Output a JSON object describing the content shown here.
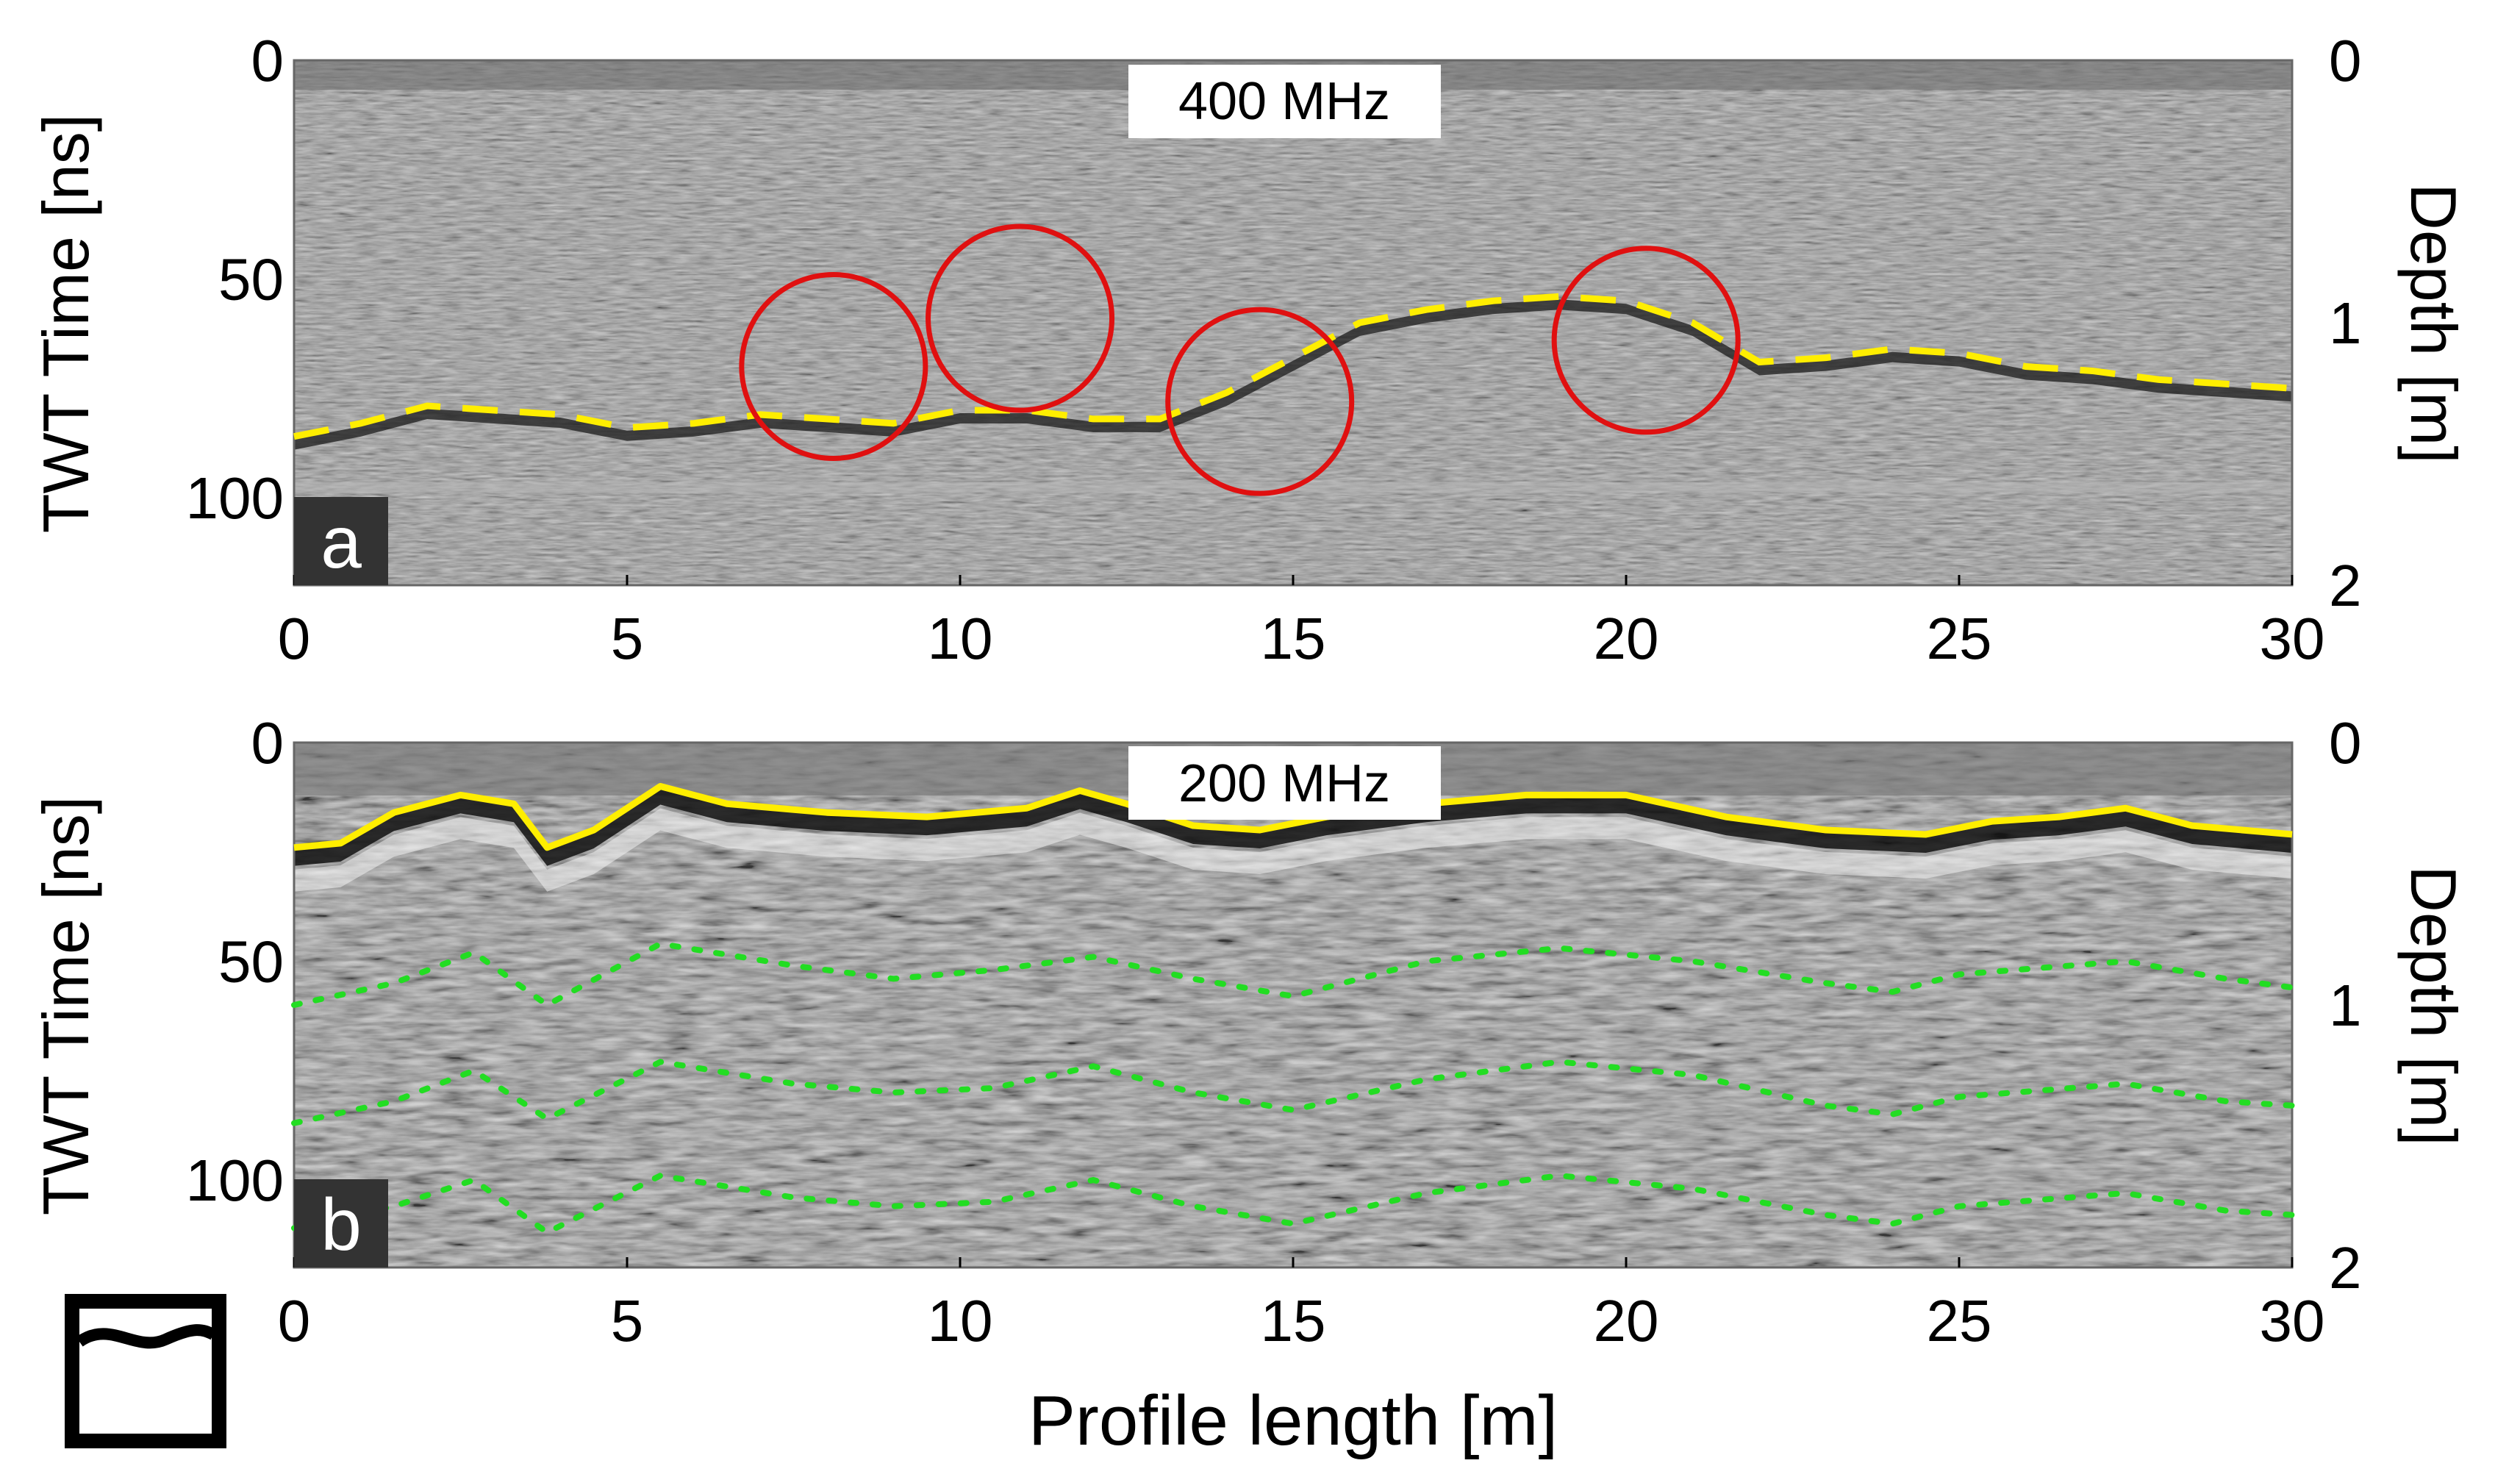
{
  "figure": {
    "xlabel": "Profile length [m]",
    "ylabel_left": "TWT Time [ns]",
    "ylabel_right": "Depth [m]",
    "colors": {
      "interface": "#ffee00",
      "reflector": "#22dd22",
      "hyperbola_marker": "#e01010",
      "radargram_bg": "#888888"
    },
    "icon": "surface-profile-icon"
  },
  "chart_data": [
    {
      "type": "radargram",
      "panel_label": "a",
      "frequency_label": "400 MHz",
      "xlim": [
        0,
        30
      ],
      "ylim_time_ns": [
        0,
        120
      ],
      "ylim_depth_m": [
        0,
        2
      ],
      "x_ticks": [
        0,
        5,
        10,
        15,
        20,
        25,
        30
      ],
      "y_ticks_time": [
        0,
        50,
        100
      ],
      "y_ticks_depth": [
        0,
        1,
        2
      ],
      "interface_line": {
        "style": "dashed",
        "x": [
          0,
          1,
          2,
          3,
          4,
          5,
          6,
          7,
          8,
          9,
          10,
          11,
          12,
          13,
          14,
          15,
          16,
          17,
          18,
          19,
          20,
          21,
          22,
          23,
          24,
          25,
          26,
          27,
          28,
          29,
          30
        ],
        "y": [
          86,
          83,
          79,
          80,
          81,
          84,
          83,
          81,
          82,
          83,
          80,
          80,
          82,
          82,
          76,
          68,
          60,
          57,
          55,
          54,
          55,
          60,
          69,
          68,
          66,
          67,
          70,
          71,
          73,
          74,
          75
        ]
      },
      "hyperbola_markers": [
        {
          "x": 8.1,
          "y_ns": 70
        },
        {
          "x": 10.9,
          "y_ns": 59
        },
        {
          "x": 14.5,
          "y_ns": 78
        },
        {
          "x": 20.3,
          "y_ns": 64
        }
      ]
    },
    {
      "type": "radargram",
      "panel_label": "b",
      "frequency_label": "200 MHz",
      "xlim": [
        0,
        30
      ],
      "ylim_time_ns": [
        0,
        120
      ],
      "ylim_depth_m": [
        0,
        2
      ],
      "x_ticks": [
        0,
        5,
        10,
        15,
        20,
        25,
        30
      ],
      "y_ticks_time": [
        0,
        50,
        100
      ],
      "y_ticks_depth": [
        0,
        1,
        2
      ],
      "interface_line": {
        "style": "solid",
        "x": [
          0,
          0.7,
          1.5,
          2.5,
          3.3,
          3.8,
          4.5,
          5.5,
          6.5,
          8,
          9.5,
          11,
          11.8,
          12.5,
          13.5,
          14.5,
          15.5,
          17,
          18.5,
          20,
          21.5,
          23,
          24.5,
          25.5,
          26.5,
          27.5,
          28.5,
          30
        ],
        "y": [
          24,
          23,
          16,
          12,
          14,
          24,
          20,
          10,
          14,
          16,
          17,
          15,
          11,
          14,
          19,
          20,
          17,
          14,
          12,
          12,
          17,
          20,
          21,
          18,
          17,
          15,
          19,
          21
        ]
      },
      "reflectors": [
        {
          "name": "reflector-1",
          "style": "dotted",
          "x": [
            0,
            1.5,
            2.7,
            3.8,
            5.5,
            7.5,
            9,
            10.5,
            12,
            13.5,
            15,
            17,
            19,
            21,
            23,
            24,
            25,
            27.5,
            29,
            30
          ],
          "y": [
            60,
            55,
            48,
            60,
            46,
            51,
            54,
            52,
            49,
            54,
            58,
            50,
            47,
            50,
            55,
            57,
            53,
            50,
            54,
            56
          ]
        },
        {
          "name": "reflector-2",
          "style": "dotted",
          "x": [
            0,
            1.5,
            2.7,
            3.8,
            5.5,
            7.5,
            9,
            10.5,
            12,
            13.5,
            15,
            17,
            19,
            21,
            23,
            24,
            25,
            27.5,
            29,
            30
          ],
          "y": [
            87,
            82,
            75,
            86,
            73,
            78,
            80,
            79,
            74,
            80,
            84,
            77,
            73,
            76,
            83,
            85,
            81,
            78,
            82,
            83
          ]
        },
        {
          "name": "reflector-3",
          "style": "dotted",
          "x": [
            0,
            1.5,
            2.7,
            3.8,
            5.5,
            7.5,
            9,
            10.5,
            12,
            13.5,
            15,
            17,
            19,
            21,
            23,
            24,
            25,
            27.5,
            29,
            30
          ],
          "y": [
            111,
            106,
            100,
            112,
            99,
            104,
            106,
            105,
            100,
            106,
            110,
            103,
            99,
            102,
            108,
            110,
            106,
            103,
            107,
            108
          ]
        }
      ]
    }
  ]
}
